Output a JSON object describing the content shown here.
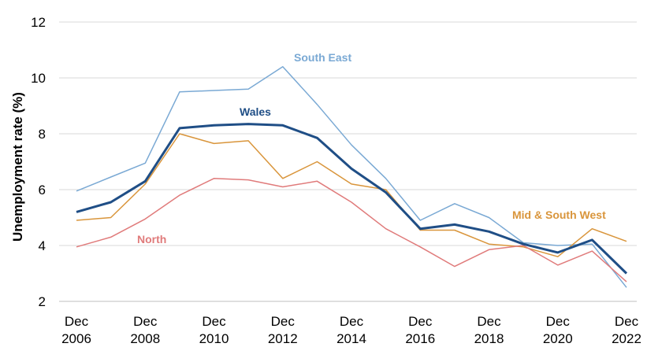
{
  "chart_data": {
    "type": "line",
    "ylabel": "Unemployment rate (%)",
    "xlabel": "",
    "ylim": [
      2,
      12
    ],
    "yticks": [
      2,
      4,
      6,
      8,
      10,
      12
    ],
    "grid": true,
    "x": [
      2006,
      2007,
      2008,
      2009,
      2010,
      2011,
      2012,
      2013,
      2014,
      2015,
      2016,
      2017,
      2018,
      2019,
      2020,
      2021,
      2022
    ],
    "x_tick_labels": [
      {
        "x": 2006,
        "line1": "Dec",
        "line2": "2006"
      },
      {
        "x": 2008,
        "line1": "Dec",
        "line2": "2008"
      },
      {
        "x": 2010,
        "line1": "Dec",
        "line2": "2010"
      },
      {
        "x": 2012,
        "line1": "Dec",
        "line2": "2012"
      },
      {
        "x": 2014,
        "line1": "Dec",
        "line2": "2014"
      },
      {
        "x": 2016,
        "line1": "Dec",
        "line2": "2016"
      },
      {
        "x": 2018,
        "line1": "Dec",
        "line2": "2018"
      },
      {
        "x": 2020,
        "line1": "Dec",
        "line2": "2020"
      },
      {
        "x": 2022,
        "line1": "Dec",
        "line2": "2022"
      }
    ],
    "series": [
      {
        "name": "South East",
        "color": "#7aa9d4",
        "width": 1.5,
        "values": [
          5.95,
          6.45,
          6.95,
          9.5,
          9.55,
          9.6,
          10.4,
          9.05,
          7.6,
          6.4,
          4.9,
          5.5,
          5.0,
          4.1,
          4.0,
          4.05,
          2.5
        ]
      },
      {
        "name": "Mid & South West",
        "color": "#d9953b",
        "width": 1.5,
        "values": [
          4.9,
          5.0,
          6.2,
          8.0,
          7.65,
          7.75,
          6.4,
          7.0,
          6.2,
          6.0,
          4.55,
          4.55,
          4.05,
          3.95,
          3.6,
          4.6,
          4.15
        ]
      },
      {
        "name": "North",
        "color": "#e07b7b",
        "width": 1.5,
        "values": [
          3.95,
          4.3,
          4.95,
          5.8,
          6.4,
          6.35,
          6.1,
          6.3,
          5.55,
          4.6,
          3.95,
          3.25,
          3.85,
          4.0,
          3.3,
          3.8,
          2.7
        ]
      },
      {
        "name": "Wales",
        "color": "#1f4e86",
        "width": 3,
        "values": [
          5.2,
          5.55,
          6.3,
          8.2,
          8.3,
          8.35,
          8.3,
          7.85,
          6.75,
          5.9,
          4.6,
          4.75,
          4.5,
          4.05,
          3.75,
          4.2,
          3.0
        ]
      }
    ]
  }
}
